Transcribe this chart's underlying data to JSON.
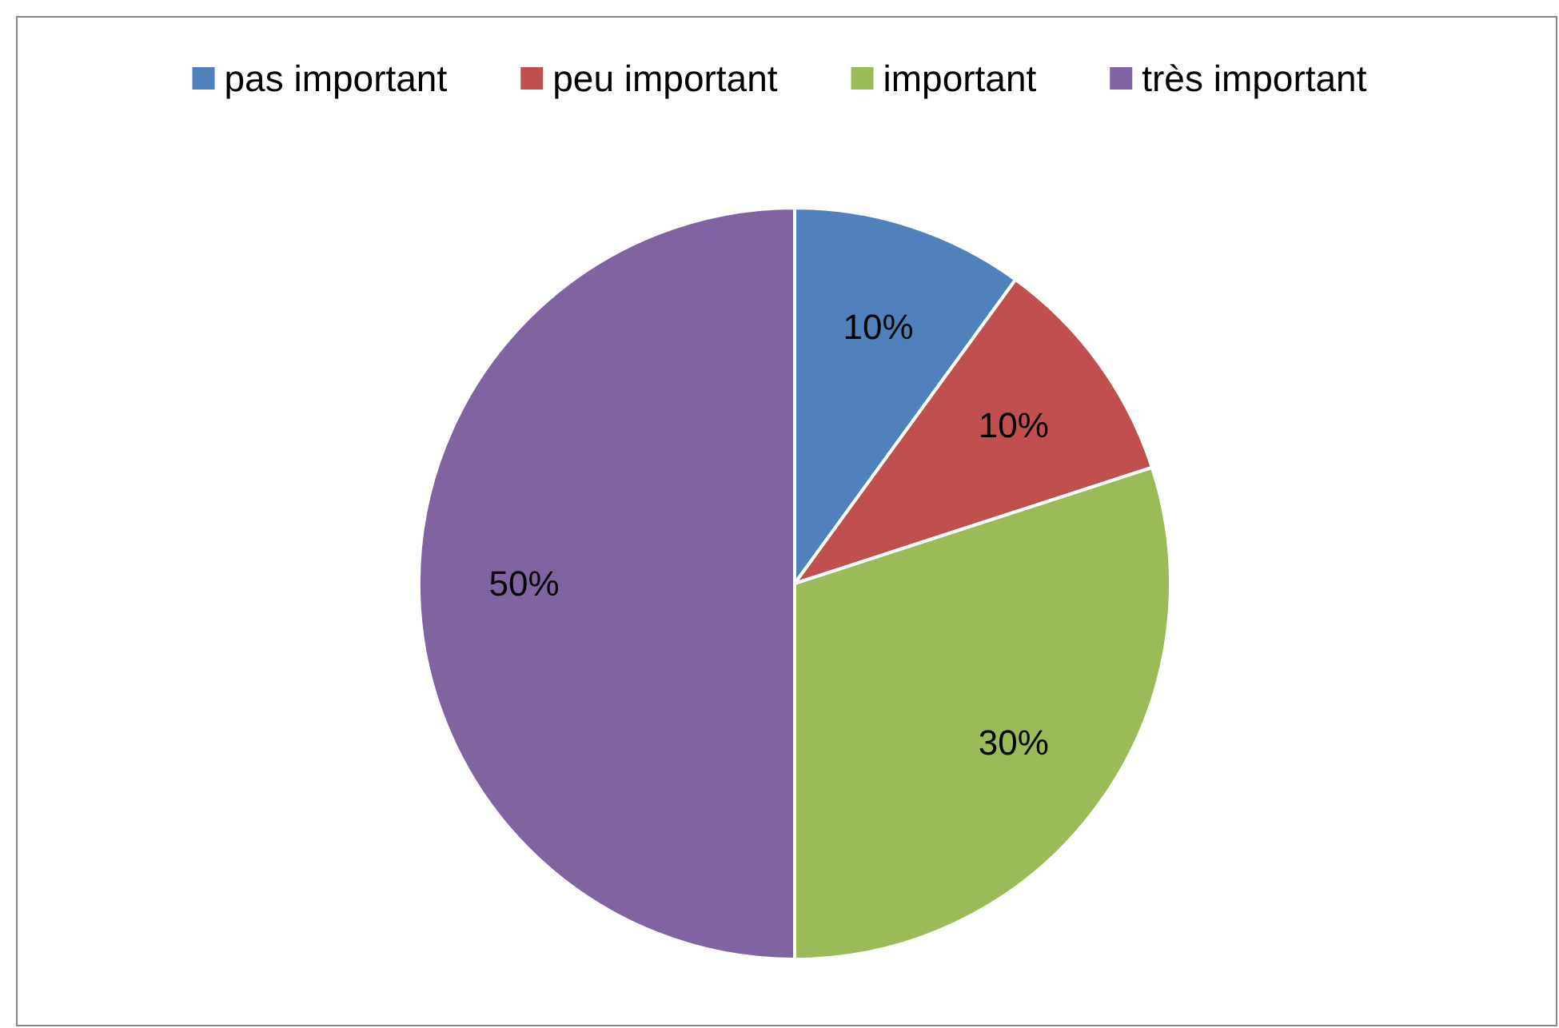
{
  "chart_data": {
    "type": "pie",
    "categories": [
      "pas important",
      "peu important",
      "important",
      "très important"
    ],
    "values": [
      10,
      10,
      30,
      50
    ],
    "colors": [
      "#4f81bd",
      "#c0504d",
      "#9bbb59",
      "#8064a2"
    ],
    "value_labels": [
      "10%",
      "10%",
      "30%",
      "50%"
    ],
    "legend": "top"
  }
}
